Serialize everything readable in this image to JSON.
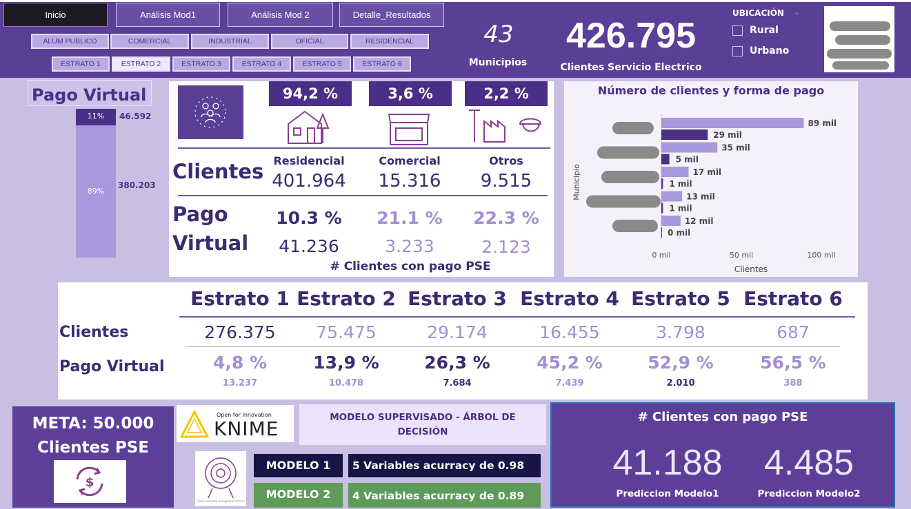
{
  "nav": {
    "tabs": [
      "Inicio",
      "Análisis Mod1",
      "Análisis Mod 2",
      "Detalle_Resultados"
    ]
  },
  "filters": {
    "uso": [
      "ALUM PUBLICO",
      "COMERCIAL",
      "INDUSTRIAL",
      "OFICIAL",
      "RESIDENCIAL"
    ],
    "estratos": [
      "ESTRATO 1",
      "ESTRATO 2",
      "ESTRATO 3",
      "ESTRATO 4",
      "ESTRATO 5",
      "ESTRATO 6"
    ]
  },
  "kpis": {
    "municipios_value": "43",
    "municipios_label": "Municipios",
    "clientes_value": "426.795",
    "clientes_label": "Clientes Servicio Electrico"
  },
  "ubicacion": {
    "title": "UBICACIÓN",
    "options": [
      "Rural",
      "Urbano"
    ]
  },
  "pago_virtual_bar": {
    "title": "Pago Virtual",
    "top_pct": "11%",
    "top_value": "46.592",
    "bottom_pct": "89%",
    "bottom_value": "380.203",
    "top_fraction": 0.11
  },
  "clientes_panel": {
    "pcts": [
      "94,2 %",
      "3,6 %",
      "2,2 %"
    ],
    "clientes_label": "Clientes",
    "categories": [
      "Residencial",
      "Comercial",
      "Otros"
    ],
    "clientes_values": [
      "401.964",
      "15.316",
      "9.515"
    ],
    "pago_label_1": "Pago",
    "pago_label_2": "Virtual",
    "pago_pcts": [
      "10.3 %",
      "21.1 %",
      "22.3 %"
    ],
    "pago_values": [
      "41.236",
      "3.233",
      "2.123"
    ],
    "footer": "# Clientes con pago PSE"
  },
  "chart_data": {
    "type": "bar",
    "title": "Número de clientes y forma de pago",
    "xlabel": "Clientes",
    "ylabel": "Municipio",
    "xlim": [
      0,
      100000
    ],
    "xticks": [
      "0 mil",
      "50 mil",
      "100 mil"
    ],
    "series": [
      {
        "name": "Clientes",
        "values": [
          89000,
          35000,
          17000,
          13000,
          12000
        ]
      },
      {
        "name": "Pago PSE",
        "values": [
          29000,
          5000,
          1000,
          1000,
          0
        ]
      }
    ],
    "data_labels": [
      [
        "89 mil",
        "29 mil"
      ],
      [
        "35 mil",
        "5 mil"
      ],
      [
        "17 mil",
        "1 mil"
      ],
      [
        "13 mil",
        "1 mil"
      ],
      [
        "12 mil",
        "0 mil"
      ]
    ]
  },
  "estratos_table": {
    "headers": [
      "Estrato 1",
      "Estrato 2",
      "Estrato 3",
      "Estrato 4",
      "Estrato 5",
      "Estrato 6"
    ],
    "row1_label": "Clientes",
    "clientes": [
      "276.375",
      "75.475",
      "29.174",
      "16.455",
      "3.798",
      "687"
    ],
    "row2_label": "Pago Virtual",
    "pago_pcts": [
      "4,8 %",
      "13,9 %",
      "26,3 %",
      "45,2 %",
      "52,9 %",
      "56,5 %"
    ],
    "pago_values": [
      "13.237",
      "10.478",
      "7.684",
      "7.439",
      "2.010",
      "388"
    ]
  },
  "meta": {
    "line1": "META: 50.000",
    "line2": "Clientes PSE"
  },
  "knime": {
    "small": "Open for Innovation",
    "big": "KNIME"
  },
  "modelo": {
    "title": "MODELO SUPERVISADO - ÁRBOL DE DECISIÓN",
    "m1": "MODELO 1",
    "m1_desc": "5 Variables acurracy de 0.98",
    "m2": "MODELO 2",
    "m2_desc": "4 Variables acurracy de 0.89",
    "target_caption": "Good accuracy and good precision"
  },
  "prediccion": {
    "title": "# Clientes con pago PSE",
    "v1": "41.188",
    "l1": "Prediccion Modelo1",
    "v2": "4.485",
    "l2": "Prediccion Modelo2"
  }
}
